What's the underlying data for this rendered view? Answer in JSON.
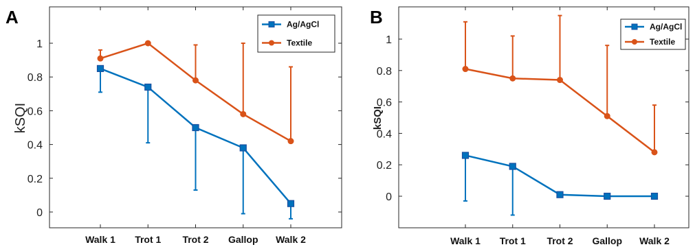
{
  "colors": {
    "agagcl": "#0072BD",
    "textile": "#D95319"
  },
  "chart_data": [
    {
      "panel_label": "A",
      "type": "line",
      "categories": [
        "Walk 1",
        "Trot 1",
        "Trot 2",
        "Gallop",
        "Walk 2"
      ],
      "ylabel": "kSQI",
      "ylim": [
        -0.05,
        1.2
      ],
      "yticks": [
        "0",
        "0.2",
        "0.4",
        "0.6",
        "0.8",
        "1"
      ],
      "ytick_values": [
        0,
        0.2,
        0.4,
        0.6,
        0.8,
        1
      ],
      "legend_position": "top-right",
      "series": [
        {
          "name": "Ag/AgCl",
          "values": [
            0.85,
            0.74,
            0.5,
            0.38,
            0.05
          ],
          "err_low": [
            0.71,
            0.41,
            0.13,
            -0.01,
            -0.04
          ],
          "err_high": [
            0.85,
            0.74,
            0.5,
            0.38,
            0.05
          ]
        },
        {
          "name": "Textile",
          "values": [
            0.91,
            1.0,
            0.78,
            0.58,
            0.42
          ],
          "err_low": [
            0.91,
            1.0,
            0.78,
            0.58,
            0.42
          ],
          "err_high": [
            0.96,
            1.0,
            0.99,
            1.0,
            0.86
          ]
        }
      ]
    },
    {
      "panel_label": "B",
      "type": "line",
      "categories": [
        "Walk 1",
        "Trot 1",
        "Trot 2",
        "Gallop",
        "Walk 2"
      ],
      "ylabel": "kSQI",
      "ylim": [
        -0.2,
        1.2
      ],
      "yticks": [
        "0",
        "0.2",
        "0.4",
        "0.6",
        "0.8",
        "1"
      ],
      "ytick_values": [
        0,
        0.2,
        0.4,
        0.6,
        0.8,
        1
      ],
      "legend_position": "top-right",
      "series": [
        {
          "name": "Ag/AgCl",
          "values": [
            0.26,
            0.19,
            0.01,
            0.0,
            0.0
          ],
          "err_low": [
            -0.03,
            -0.12,
            0.01,
            0.0,
            0.0
          ],
          "err_high": [
            0.26,
            0.19,
            0.01,
            0.0,
            0.0
          ]
        },
        {
          "name": "Textile",
          "values": [
            0.81,
            0.75,
            0.74,
            0.51,
            0.28
          ],
          "err_low": [
            0.81,
            0.75,
            0.74,
            0.51,
            0.28
          ],
          "err_high": [
            1.11,
            1.02,
            1.15,
            0.96,
            0.58
          ]
        }
      ]
    }
  ]
}
